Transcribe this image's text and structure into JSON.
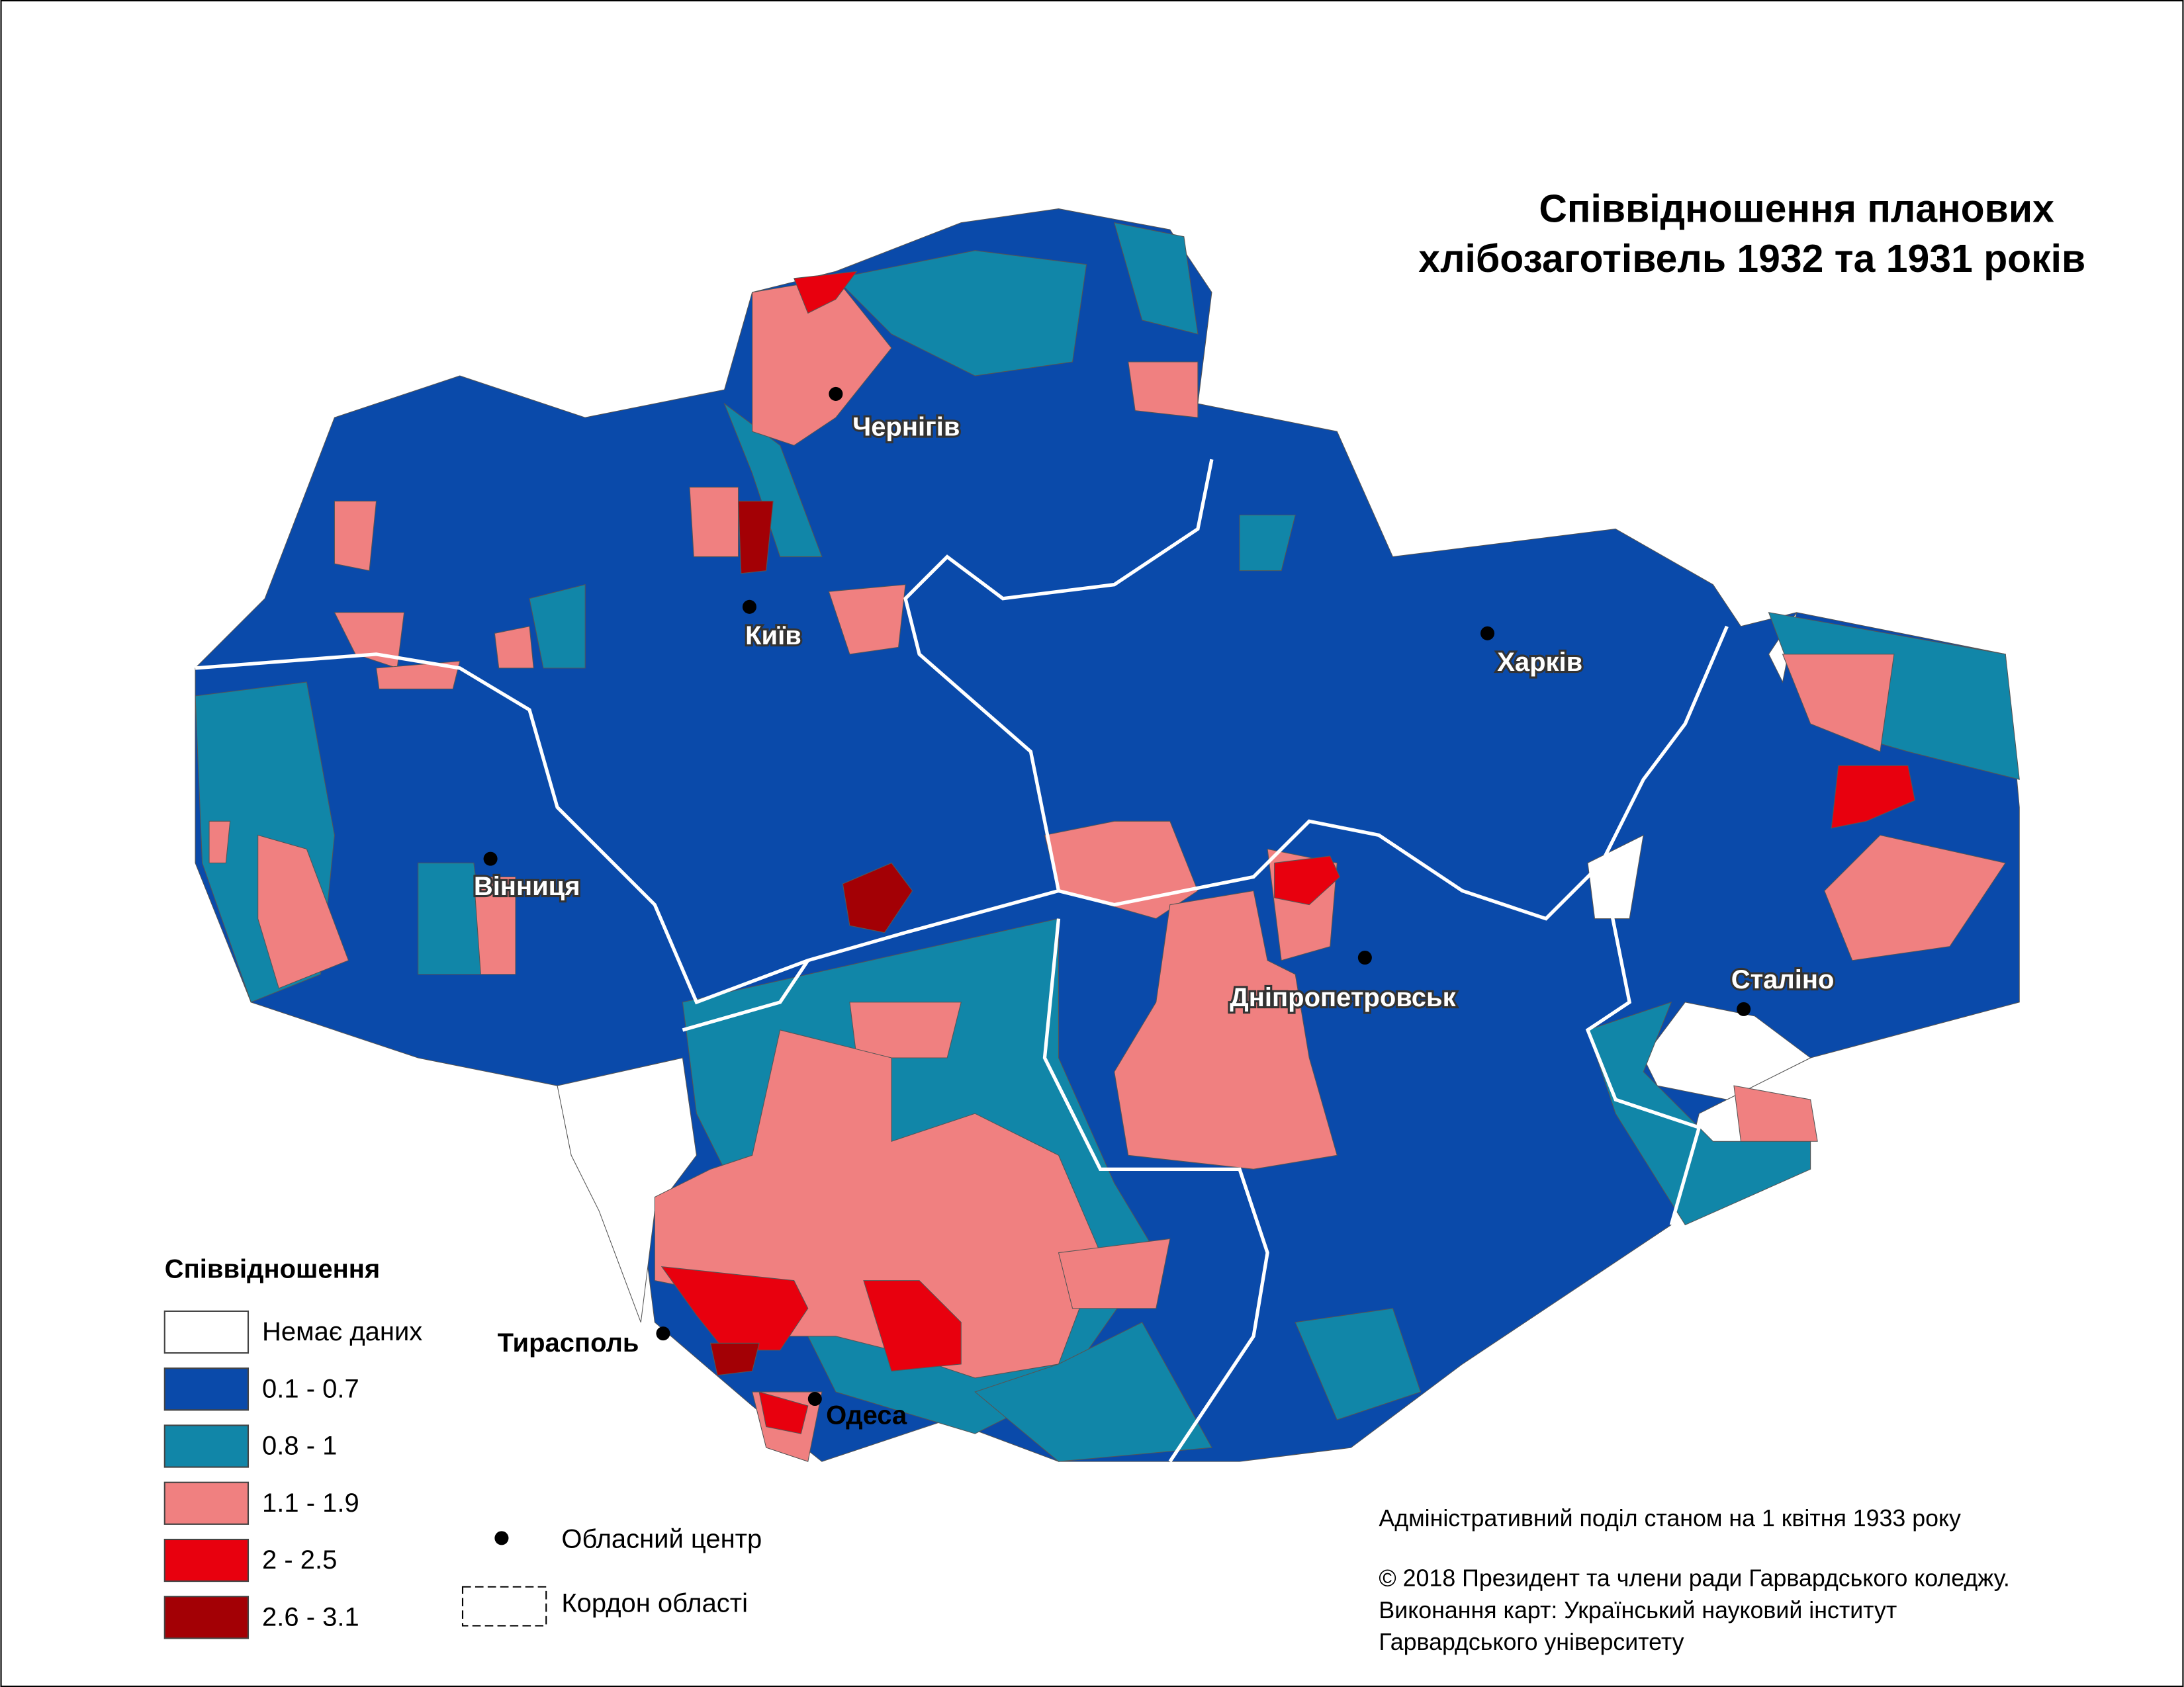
{
  "title": [
    "Співвідношення планових",
    "хлібозаготівель 1932 та 1931 років"
  ],
  "legend": {
    "title": "Співвідношення",
    "items": [
      {
        "label": "Немає даних",
        "color": "#ffffff"
      },
      {
        "label": "0.1 - 0.7",
        "color": "#0a4aaa"
      },
      {
        "label": "0.8 - 1",
        "color": "#1186a8"
      },
      {
        "label": "1.1 - 1.9",
        "color": "#f08080"
      },
      {
        "label": "2 - 2.5",
        "color": "#e8000e"
      },
      {
        "label": "2.6 - 3.1",
        "color": "#a30005"
      }
    ]
  },
  "cities": [
    "Чернігів",
    "Київ",
    "Харків",
    "Вінниця",
    "Дніпропетровськ",
    "Сталіно",
    "Тирасполь",
    "Одеса"
  ],
  "point_legend": "Обласний центр",
  "border_legend": "Кордон області",
  "notes": [
    "Адміністративний поділ станом на 1 квітня 1933 року",
    "© 2018 Президент та члени ради Гарвардського коледжу.",
    "Виконання карт: Український науковий інститут",
    "Гарвардського університету"
  ]
}
